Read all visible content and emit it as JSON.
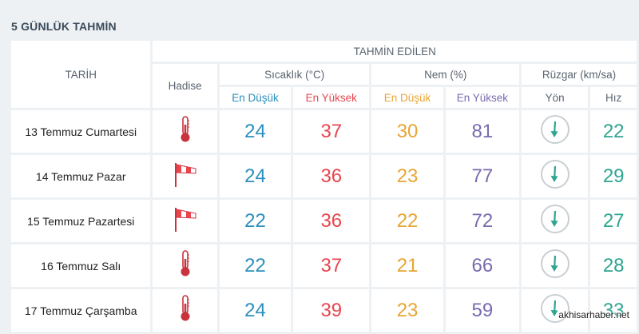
{
  "page_title": "5 GÜNLÜK TAHMİN",
  "headers": {
    "date": "TARİH",
    "event": "Hadise",
    "forecast": "TAHMİN EDİLEN",
    "temperature": "Sıcaklık (°C)",
    "humidity": "Nem (%)",
    "wind": "Rüzgar (km/sa)",
    "temp_min": "En Düşük",
    "temp_max": "En Yüksek",
    "hum_min": "En Düşük",
    "hum_max": "En Yüksek",
    "wind_dir": "Yön",
    "wind_speed": "Hız"
  },
  "rows": [
    {
      "date": "13 Temmuz Cumartesi",
      "event_icon": "thermometer-icon",
      "temp_min": "24",
      "temp_max": "37",
      "hum_min": "30",
      "hum_max": "81",
      "wind_dir_icon": "arrow-down-icon",
      "wind_speed": "22"
    },
    {
      "date": "14 Temmuz Pazar",
      "event_icon": "windsock-icon",
      "temp_min": "24",
      "temp_max": "36",
      "hum_min": "23",
      "hum_max": "77",
      "wind_dir_icon": "arrow-down-icon",
      "wind_speed": "29"
    },
    {
      "date": "15 Temmuz Pazartesi",
      "event_icon": "windsock-icon",
      "temp_min": "22",
      "temp_max": "36",
      "hum_min": "22",
      "hum_max": "72",
      "wind_dir_icon": "arrow-down-icon",
      "wind_speed": "27"
    },
    {
      "date": "16 Temmuz Salı",
      "event_icon": "thermometer-icon",
      "temp_min": "22",
      "temp_max": "37",
      "hum_min": "21",
      "hum_max": "66",
      "wind_dir_icon": "arrow-down-icon",
      "wind_speed": "28"
    },
    {
      "date": "17 Temmuz Çarşamba",
      "event_icon": "thermometer-icon",
      "temp_min": "24",
      "temp_max": "39",
      "hum_min": "23",
      "hum_max": "59",
      "wind_dir_icon": "arrow-down-icon",
      "wind_speed": "33"
    }
  ],
  "watermark": "akhisarhaber.net",
  "colors": {
    "background": "#eef1f3",
    "temp_min": "#2a8fbd",
    "temp_max": "#e8454f",
    "hum_min": "#e8a534",
    "hum_max": "#7a6bb0",
    "wind": "#2ea58f"
  }
}
